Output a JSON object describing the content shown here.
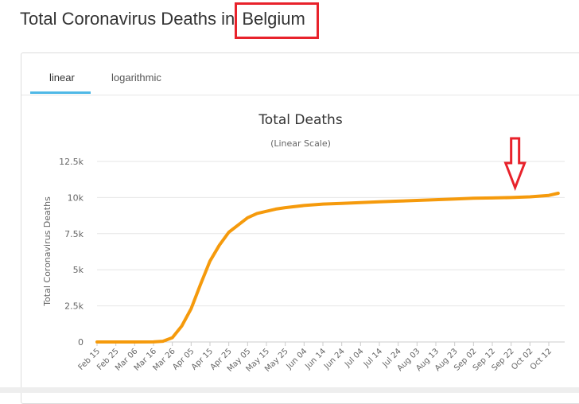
{
  "header": {
    "title_prefix": "Total Coronavirus Deaths in ",
    "country": "Belgium",
    "highlight_color": "#e8222b"
  },
  "tabs": [
    {
      "label": "linear",
      "active": true
    },
    {
      "label": "logarithmic",
      "active": false
    }
  ],
  "annotation": {
    "type": "down-arrow",
    "color": "#e8222b",
    "points_to_date": "Sep 22"
  },
  "chart_data": {
    "type": "line",
    "title": "Total Deaths",
    "subtitle": "(Linear Scale)",
    "xlabel": "",
    "ylabel": "Total Coronavirus Deaths",
    "ylim": [
      0,
      12500
    ],
    "yticks": [
      0,
      2500,
      5000,
      7500,
      10000,
      12500
    ],
    "ytick_labels": [
      "0",
      "2.5k",
      "5k",
      "7.5k",
      "10k",
      "12.5k"
    ],
    "xtick_labels": [
      "Feb 15",
      "Feb 25",
      "Mar 06",
      "Mar 16",
      "Mar 26",
      "Apr 05",
      "Apr 15",
      "Apr 25",
      "May 05",
      "May 15",
      "May 25",
      "Jun 04",
      "Jun 14",
      "Jun 24",
      "Jul 04",
      "Jul 14",
      "Jul 24",
      "Aug 03",
      "Aug 13",
      "Aug 23",
      "Sep 02",
      "Sep 12",
      "Sep 22",
      "Oct 02",
      "Oct 12"
    ],
    "grid": true,
    "color": "#f59a0c",
    "series": [
      {
        "x": [
          "Feb 15",
          "Feb 25",
          "Mar 06",
          "Mar 16",
          "Mar 21",
          "Mar 26",
          "Mar 31",
          "Apr 05",
          "Apr 10",
          "Apr 15",
          "Apr 20",
          "Apr 25",
          "May 01",
          "May 05",
          "May 10",
          "May 15",
          "May 20",
          "May 25",
          "Jun 04",
          "Jun 14",
          "Jun 24",
          "Jul 04",
          "Jul 14",
          "Jul 24",
          "Aug 03",
          "Aug 13",
          "Aug 23",
          "Sep 02",
          "Sep 12",
          "Sep 22",
          "Oct 02",
          "Oct 12",
          "Oct 17"
        ],
        "values": [
          0,
          0,
          0,
          5,
          50,
          300,
          1100,
          2300,
          4000,
          5600,
          6700,
          7600,
          8200,
          8600,
          8900,
          9050,
          9200,
          9300,
          9450,
          9550,
          9600,
          9650,
          9700,
          9750,
          9800,
          9850,
          9900,
          9950,
          9970,
          10000,
          10050,
          10150,
          10300
        ]
      }
    ]
  }
}
